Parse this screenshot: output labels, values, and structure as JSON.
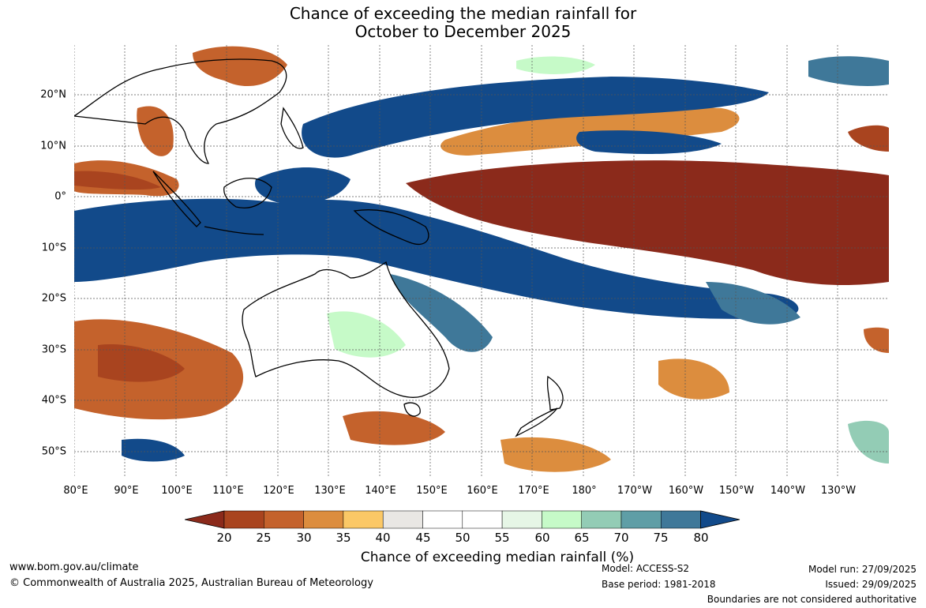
{
  "title": {
    "line1": "Chance of exceeding the median rainfall for",
    "line2": "October to December 2025"
  },
  "map": {
    "lat_labels": [
      "20°N",
      "10°N",
      "0°",
      "10°S",
      "20°S",
      "30°S",
      "40°S",
      "50°S"
    ],
    "lon_labels": [
      "80°E",
      "90°E",
      "100°E",
      "110°E",
      "120°E",
      "130°E",
      "140°E",
      "150°E",
      "160°E",
      "170°E",
      "180°",
      "170°W",
      "160°W",
      "150°W",
      "140°W",
      "130°W"
    ]
  },
  "colorbar": {
    "ticks": [
      "20",
      "25",
      "30",
      "35",
      "40",
      "45",
      "50",
      "55",
      "60",
      "65",
      "70",
      "75",
      "80"
    ],
    "colors": [
      "#8b2a1b",
      "#a9441f",
      "#c4622c",
      "#dc8d3e",
      "#fbc866",
      "#e9e7e4",
      "#ffffff",
      "#ffffff",
      "#e6f6e6",
      "#c6fac8",
      "#93ccb5",
      "#5f9ea6",
      "#3f7899",
      "#124a8a"
    ],
    "label": "Chance of exceeding median rainfall (%)"
  },
  "footer": {
    "website": "www.bom.gov.au/climate",
    "copyright": "© Commonwealth of Australia 2025, Australian Bureau of Meteorology",
    "model": "Model: ACCESS-S2",
    "base_period": "Base period: 1981-2018",
    "model_run": "Model run: 27/09/2025",
    "issued": "Issued: 29/09/2025",
    "disclaimer": "Boundaries are not considered authoritative"
  }
}
